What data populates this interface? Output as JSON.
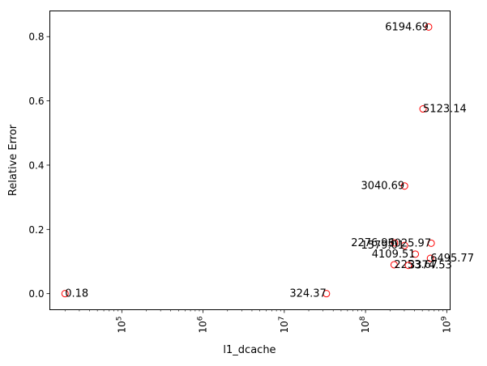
{
  "chart_data": {
    "type": "scatter",
    "title": "",
    "xlabel": "l1_dcache",
    "ylabel": "Relative Error",
    "x_scale": "log",
    "xlim": [
      13000,
      1100000000
    ],
    "ylim": [
      -0.05,
      0.88
    ],
    "x_ticks": [
      {
        "value": 100000,
        "base": "10",
        "exp": "5"
      },
      {
        "value": 1000000,
        "base": "10",
        "exp": "6"
      },
      {
        "value": 10000000,
        "base": "10",
        "exp": "7"
      },
      {
        "value": 100000000,
        "base": "10",
        "exp": "8"
      },
      {
        "value": 1000000000,
        "base": "10",
        "exp": "9"
      }
    ],
    "y_ticks": [
      {
        "value": 0.0,
        "label": "0.0"
      },
      {
        "value": 0.2,
        "label": "0.2"
      },
      {
        "value": 0.4,
        "label": "0.4"
      },
      {
        "value": 0.6,
        "label": "0.6"
      },
      {
        "value": 0.8,
        "label": "0.8"
      }
    ],
    "marker_color": "#ff0000",
    "grid": false,
    "points": [
      {
        "x": 20000,
        "y": 0.0,
        "label": "0.18",
        "align": "start"
      },
      {
        "x": 33000000,
        "y": 0.0,
        "label": "324.37",
        "align": "end"
      },
      {
        "x": 598000000,
        "y": 0.83,
        "label": "6194.69",
        "align": "end"
      },
      {
        "x": 510000000,
        "y": 0.575,
        "label": "5123.14",
        "align": "start"
      },
      {
        "x": 302000000,
        "y": 0.335,
        "label": "3040.69",
        "align": "end"
      },
      {
        "x": 228000000,
        "y": 0.158,
        "label": "2276.96",
        "align": "end"
      },
      {
        "x": 302000000,
        "y": 0.15,
        "label": "1579.01",
        "align": "end"
      },
      {
        "x": 643000000,
        "y": 0.157,
        "label": "3025.97",
        "align": "end"
      },
      {
        "x": 410000000,
        "y": 0.123,
        "label": "4109.51",
        "align": "end"
      },
      {
        "x": 630000000,
        "y": 0.11,
        "label": "6495.77",
        "align": "start"
      },
      {
        "x": 225000000,
        "y": 0.09,
        "label": "2253.67",
        "align": "start"
      },
      {
        "x": 337000000,
        "y": 0.088,
        "label": "3374.53",
        "align": "start"
      }
    ]
  }
}
